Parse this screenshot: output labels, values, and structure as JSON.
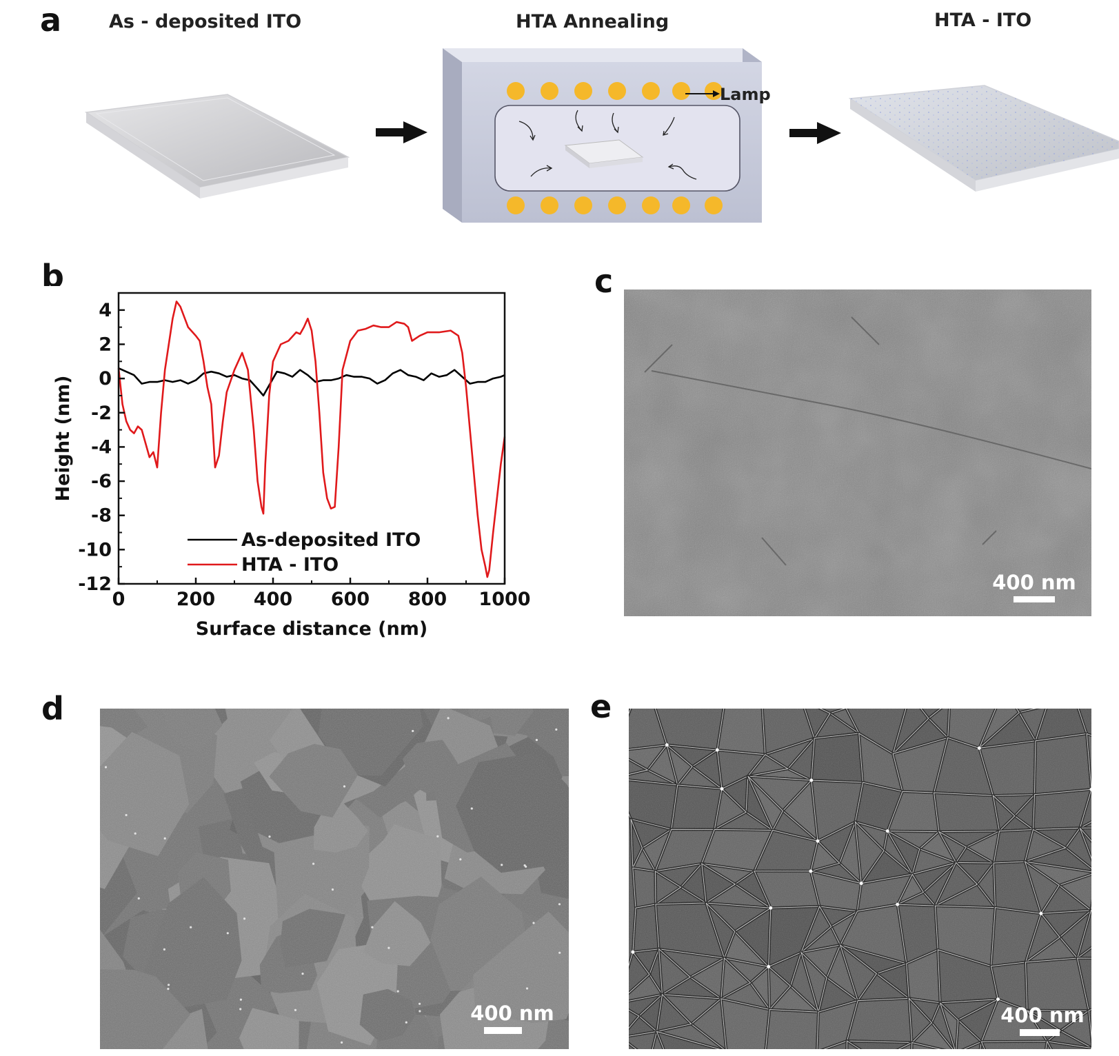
{
  "panels": {
    "a": "a",
    "b": "b",
    "c": "c",
    "d": "d",
    "e": "e"
  },
  "schematic": {
    "stages": [
      "As - deposited ITO",
      "HTA Annealing",
      "HTA - ITO"
    ],
    "lamp_label": "Lamp"
  },
  "chart_data": {
    "type": "line",
    "xlabel": "Surface distance (nm)",
    "ylabel": "Height (nm)",
    "xlim": [
      0,
      1000
    ],
    "ylim": [
      -12,
      5
    ],
    "xticks": [
      0,
      200,
      400,
      600,
      800,
      1000
    ],
    "yticks": [
      4,
      2,
      0,
      -2,
      -4,
      -6,
      -8,
      -10,
      -12
    ],
    "legend_position": "bottom-center",
    "series": [
      {
        "name": "As-deposited ITO",
        "color": "#000000",
        "x": [
          0,
          20,
          40,
          60,
          80,
          100,
          120,
          140,
          160,
          180,
          200,
          220,
          240,
          260,
          280,
          300,
          320,
          340,
          360,
          375,
          390,
          410,
          430,
          450,
          470,
          490,
          510,
          530,
          550,
          570,
          590,
          610,
          630,
          650,
          670,
          690,
          710,
          730,
          750,
          770,
          790,
          810,
          830,
          850,
          870,
          890,
          910,
          930,
          950,
          970,
          990,
          1000
        ],
        "y": [
          0.6,
          0.4,
          0.2,
          -0.3,
          -0.2,
          -0.2,
          -0.1,
          -0.2,
          -0.1,
          -0.3,
          -0.1,
          0.3,
          0.4,
          0.3,
          0.1,
          0.2,
          0.0,
          -0.1,
          -0.6,
          -1.0,
          -0.4,
          0.4,
          0.3,
          0.1,
          0.5,
          0.2,
          -0.2,
          -0.1,
          -0.1,
          0.0,
          0.2,
          0.1,
          0.1,
          0.0,
          -0.3,
          -0.1,
          0.3,
          0.5,
          0.2,
          0.1,
          -0.1,
          0.3,
          0.1,
          0.2,
          0.5,
          0.1,
          -0.3,
          -0.2,
          -0.2,
          0.0,
          0.1,
          0.2
        ]
      },
      {
        "name": "HTA - ITO",
        "color": "#e0191b",
        "x": [
          0,
          10,
          20,
          30,
          40,
          50,
          60,
          70,
          80,
          90,
          100,
          110,
          120,
          130,
          140,
          150,
          160,
          180,
          200,
          210,
          220,
          230,
          240,
          250,
          260,
          270,
          280,
          300,
          320,
          335,
          350,
          360,
          370,
          375,
          380,
          390,
          400,
          420,
          440,
          460,
          470,
          480,
          490,
          500,
          510,
          520,
          530,
          540,
          550,
          560,
          570,
          580,
          600,
          620,
          640,
          660,
          680,
          700,
          720,
          740,
          750,
          760,
          780,
          800,
          830,
          860,
          880,
          890,
          900,
          910,
          920,
          930,
          940,
          950,
          955,
          960,
          970,
          980,
          990,
          1000
        ],
        "y": [
          0.6,
          -1.5,
          -2.5,
          -3.0,
          -3.2,
          -2.8,
          -3.0,
          -3.8,
          -4.6,
          -4.3,
          -5.2,
          -2.0,
          0.5,
          2.0,
          3.5,
          4.5,
          4.2,
          3.0,
          2.5,
          2.2,
          1.0,
          -0.5,
          -1.5,
          -5.2,
          -4.5,
          -2.5,
          -0.8,
          0.5,
          1.5,
          0.5,
          -3.0,
          -6.0,
          -7.5,
          -7.9,
          -5.0,
          -1.0,
          1.0,
          2.0,
          2.2,
          2.7,
          2.6,
          3.0,
          3.5,
          2.8,
          1.0,
          -2.0,
          -5.5,
          -7.0,
          -7.6,
          -7.5,
          -4.0,
          0.5,
          2.2,
          2.8,
          2.9,
          3.1,
          3.0,
          3.0,
          3.3,
          3.2,
          3.0,
          2.2,
          2.5,
          2.7,
          2.7,
          2.8,
          2.5,
          1.5,
          -0.5,
          -3.0,
          -5.5,
          -8.0,
          -10.0,
          -11.0,
          -11.6,
          -11.2,
          -9.0,
          -7.0,
          -5.0,
          -3.4
        ]
      }
    ]
  },
  "scalebars": {
    "c": "400 nm",
    "d": "400 nm",
    "e": "400 nm"
  },
  "colors": {
    "lamp": "#f5b82a",
    "chamber": "#c8ccde",
    "red_trace": "#e0191b"
  }
}
